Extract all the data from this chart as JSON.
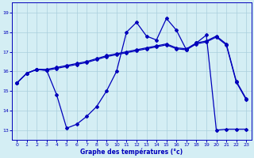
{
  "xlabel": "Graphe des températures (°c)",
  "bg_color": "#d4eef4",
  "grid_color": "#aacfdc",
  "line_color": "#0000bb",
  "xlim": [
    -0.5,
    23.5
  ],
  "ylim": [
    12.5,
    19.5
  ],
  "yticks": [
    13,
    14,
    15,
    16,
    17,
    18,
    19
  ],
  "xticks": [
    0,
    1,
    2,
    3,
    4,
    5,
    6,
    7,
    8,
    9,
    10,
    11,
    12,
    13,
    14,
    15,
    16,
    17,
    18,
    19,
    20,
    21,
    22,
    23
  ],
  "line1_x": [
    0,
    1,
    2,
    3,
    4,
    5,
    6,
    7,
    8,
    9,
    10,
    11,
    12,
    13,
    14,
    15,
    16,
    17,
    18,
    19,
    20,
    21,
    22,
    23
  ],
  "line1_y": [
    15.4,
    15.9,
    16.1,
    16.1,
    16.2,
    16.3,
    16.4,
    16.5,
    16.65,
    16.8,
    16.9,
    17.0,
    17.1,
    17.2,
    17.3,
    17.4,
    17.2,
    17.15,
    17.45,
    17.55,
    17.8,
    17.4,
    15.5,
    14.6
  ],
  "line2_x": [
    0,
    1,
    2,
    3,
    4,
    5,
    6,
    7,
    8,
    9,
    10,
    11,
    12,
    13,
    14,
    15,
    16,
    17,
    18,
    19,
    20,
    21,
    22,
    23
  ],
  "line2_y": [
    15.4,
    15.9,
    16.1,
    16.05,
    16.15,
    16.25,
    16.35,
    16.45,
    16.6,
    16.75,
    16.85,
    16.95,
    17.05,
    17.15,
    17.25,
    17.35,
    17.15,
    17.1,
    17.4,
    17.5,
    17.75,
    17.35,
    15.45,
    14.55
  ],
  "line3_x": [
    0,
    1,
    2,
    3,
    4,
    5,
    6,
    7,
    8,
    9,
    10,
    11,
    12,
    13,
    14,
    15,
    16,
    17,
    18,
    19,
    20,
    21,
    22,
    23
  ],
  "line3_y": [
    15.4,
    15.9,
    16.1,
    16.05,
    14.8,
    13.1,
    13.3,
    13.7,
    14.2,
    15.0,
    16.0,
    18.0,
    18.5,
    17.8,
    17.6,
    18.7,
    18.1,
    17.1,
    17.45,
    17.85,
    13.0,
    13.05,
    13.05,
    13.05
  ]
}
